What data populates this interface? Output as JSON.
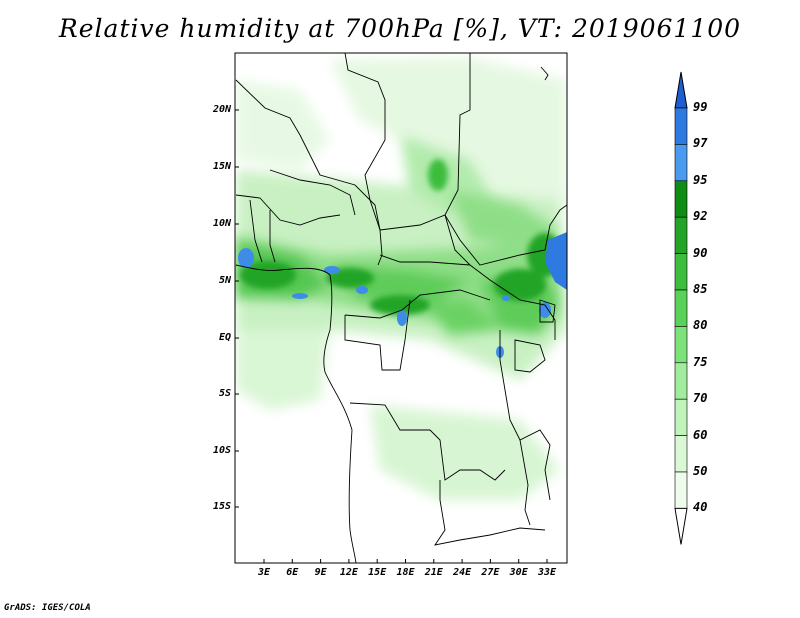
{
  "title": "Relative humidity at 700hPa [%], VT: 2019061100",
  "credit": "GrADS: IGES/COLA",
  "map": {
    "lat_labels": [
      "20N",
      "15N",
      "10N",
      "5N",
      "EQ",
      "5S",
      "10S",
      "15S"
    ],
    "lon_labels": [
      "3E",
      "6E",
      "9E",
      "12E",
      "15E",
      "18E",
      "21E",
      "24E",
      "27E",
      "30E",
      "33E"
    ]
  },
  "colorbar": {
    "levels": [
      "99",
      "97",
      "95",
      "92",
      "90",
      "85",
      "80",
      "75",
      "70",
      "60",
      "50",
      "40"
    ],
    "colors": [
      "#1d5fd1",
      "#2f7ae0",
      "#4a9af0",
      "#0f8c14",
      "#23a428",
      "#3dbd3d",
      "#5ad25a",
      "#7ee27a",
      "#a1ec9d",
      "#c0f4bb",
      "#daf8d6",
      "#eefcec"
    ]
  },
  "chart_data": {
    "type": "heatmap",
    "title": "Relative humidity at 700hPa [%], VT: 2019061100",
    "variable": "Relative humidity",
    "units": "%",
    "level": "700hPa",
    "valid_time": "2019061100",
    "lat_range": [
      "19S",
      "24N"
    ],
    "lon_range": [
      "0E",
      "35E"
    ],
    "contour_levels": [
      40,
      50,
      60,
      70,
      75,
      80,
      85,
      90,
      92,
      95,
      97,
      99
    ]
  }
}
